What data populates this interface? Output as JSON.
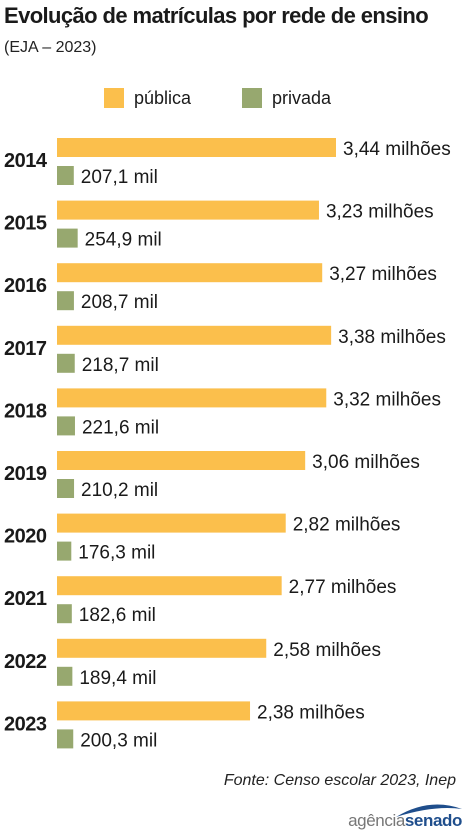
{
  "title": "Evolução de matrículas por rede de ensino",
  "subtitle": "(EJA – 2023)",
  "legend": [
    {
      "label": "pública",
      "color": "#fbbf4c"
    },
    {
      "label": "privada",
      "color": "#97a86f"
    }
  ],
  "chart_data": {
    "type": "bar",
    "orientation": "horizontal",
    "unit_note": "pública in millions; privada in thousands",
    "categories": [
      "2014",
      "2015",
      "2016",
      "2017",
      "2018",
      "2019",
      "2020",
      "2021",
      "2022",
      "2023"
    ],
    "series": [
      {
        "name": "pública",
        "color": "#fbbf4c",
        "values": [
          3440000,
          3230000,
          3270000,
          3380000,
          3320000,
          3060000,
          2820000,
          2770000,
          2580000,
          2380000
        ],
        "labels": [
          "3,44 milhões",
          "3,23 milhões",
          "3,27 milhões",
          "3,38 milhões",
          "3,32 milhões",
          "3,06 milhões",
          "2,82 milhões",
          "2,77 milhões",
          "2,58 milhões",
          "2,38 milhões"
        ]
      },
      {
        "name": "privada",
        "color": "#97a86f",
        "values": [
          207100,
          254900,
          208700,
          218700,
          221600,
          210200,
          176300,
          182600,
          189400,
          200300
        ],
        "labels": [
          "207,1 mil",
          "254,9 mil",
          "208,7 mil",
          "218,7 mil",
          "221,6 mil",
          "210,2 mil",
          "176,3 mil",
          "182,6 mil",
          "189,4 mil",
          "200,3 mil"
        ]
      }
    ],
    "legend_position": "top",
    "grid": false
  },
  "source": "Fonte:  Censo escolar 2023, Inep",
  "logo": {
    "part1": "agência",
    "part2": "senado"
  }
}
